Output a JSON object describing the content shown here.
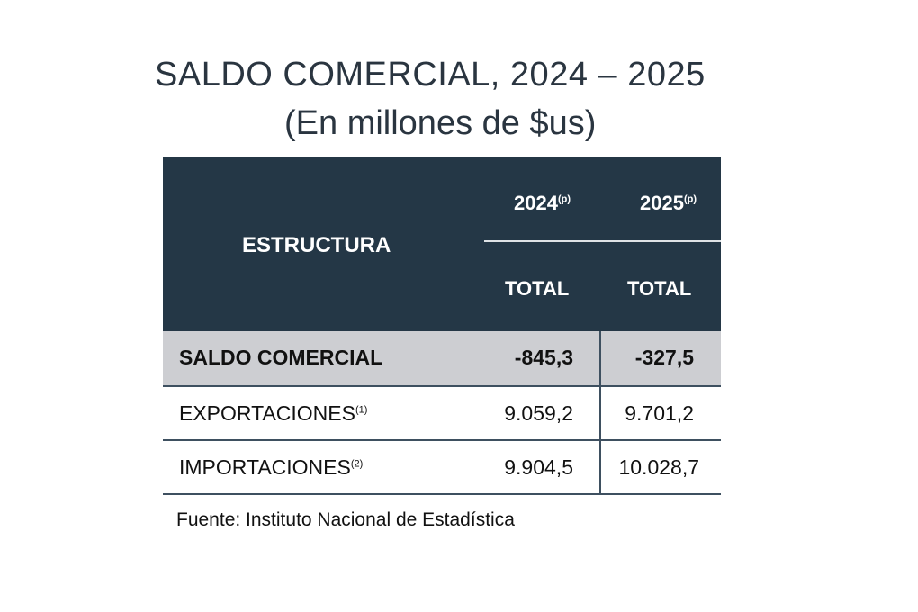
{
  "title": "SALDO COMERCIAL, 2024 – 2025",
  "subtitle": "(En millones de $us)",
  "header": {
    "estructura": "ESTRUCTURA",
    "years": [
      {
        "year": "2024",
        "note": "(p)"
      },
      {
        "year": "2025",
        "note": "(p)"
      }
    ],
    "total": "TOTAL"
  },
  "rows": [
    {
      "label": "SALDO COMERCIAL",
      "note": "",
      "v2024": "-845,3",
      "v2025": "-327,5"
    },
    {
      "label": "EXPORTACIONES",
      "note": "(1)",
      "v2024": "9.059,2",
      "v2025": "9.701,2"
    },
    {
      "label": "IMPORTACIONES",
      "note": "(2)",
      "v2024": "9.904,5",
      "v2025": "10.028,7"
    }
  ],
  "source": "Fuente: Instituto Nacional de Estadística"
}
